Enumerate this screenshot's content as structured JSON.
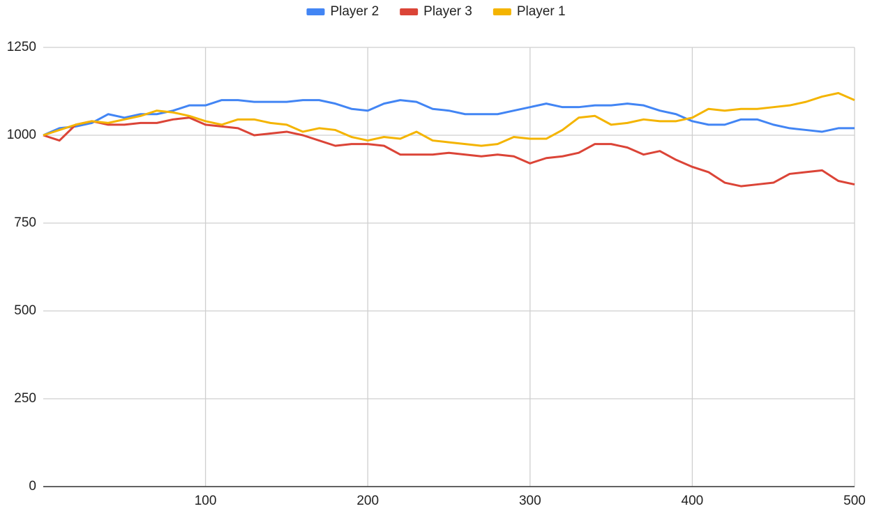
{
  "chart_data": {
    "type": "line",
    "x": [
      0,
      10,
      20,
      30,
      40,
      50,
      60,
      70,
      80,
      90,
      100,
      110,
      120,
      130,
      140,
      150,
      160,
      170,
      180,
      190,
      200,
      210,
      220,
      230,
      240,
      250,
      260,
      270,
      280,
      290,
      300,
      310,
      320,
      330,
      340,
      350,
      360,
      370,
      380,
      390,
      400,
      410,
      420,
      430,
      440,
      450,
      460,
      470,
      480,
      490,
      500
    ],
    "series": [
      {
        "name": "Player 2",
        "color": "#4285f4",
        "values": [
          1000,
          1020,
          1025,
          1035,
          1060,
          1050,
          1060,
          1060,
          1070,
          1085,
          1085,
          1100,
          1100,
          1095,
          1095,
          1095,
          1100,
          1100,
          1090,
          1075,
          1070,
          1090,
          1100,
          1095,
          1075,
          1070,
          1060,
          1060,
          1060,
          1070,
          1080,
          1090,
          1080,
          1080,
          1085,
          1085,
          1090,
          1085,
          1070,
          1060,
          1040,
          1030,
          1030,
          1045,
          1045,
          1030,
          1020,
          1015,
          1010,
          1020,
          1020
        ]
      },
      {
        "name": "Player 3",
        "color": "#db4437",
        "values": [
          1000,
          985,
          1030,
          1040,
          1030,
          1030,
          1035,
          1035,
          1045,
          1050,
          1030,
          1025,
          1020,
          1000,
          1005,
          1010,
          1000,
          985,
          970,
          975,
          975,
          970,
          945,
          945,
          945,
          950,
          945,
          940,
          945,
          940,
          920,
          935,
          940,
          950,
          975,
          975,
          965,
          945,
          955,
          930,
          910,
          895,
          865,
          855,
          860,
          865,
          890,
          895,
          900,
          870,
          860
        ]
      },
      {
        "name": "Player 1",
        "color": "#f4b400",
        "values": [
          1000,
          1015,
          1030,
          1040,
          1035,
          1045,
          1055,
          1070,
          1065,
          1055,
          1040,
          1030,
          1045,
          1045,
          1035,
          1030,
          1010,
          1020,
          1015,
          995,
          985,
          995,
          990,
          1010,
          985,
          980,
          975,
          970,
          975,
          995,
          990,
          990,
          1015,
          1050,
          1055,
          1030,
          1035,
          1045,
          1040,
          1040,
          1050,
          1075,
          1070,
          1075,
          1075,
          1080,
          1085,
          1095,
          1110,
          1120,
          1100
        ]
      }
    ],
    "xlim": [
      0,
      500
    ],
    "xticks": [
      100,
      200,
      300,
      400,
      500
    ],
    "ylim": [
      0,
      1250
    ],
    "yticks": [
      0,
      250,
      500,
      750,
      1000,
      1250
    ],
    "grid": true,
    "legend": "top"
  }
}
